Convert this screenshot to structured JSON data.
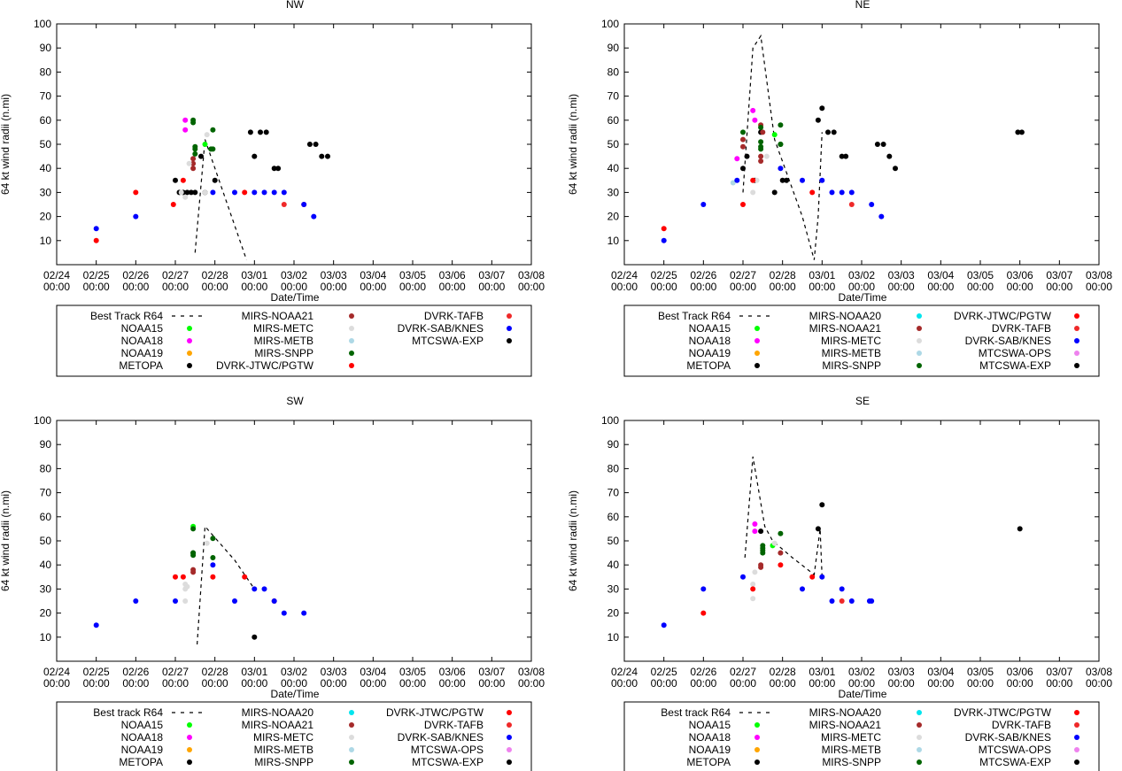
{
  "panels": [
    {
      "title": "NW",
      "xlabel": "Date/Time",
      "ylabel": "64 kt wind radii (n.mi)",
      "legend": [
        [
          "Best Track R64",
          "MIRS-NOAA21",
          "DVRK-TAFB"
        ],
        [
          "NOAA15",
          "MIRS-METC",
          "DVRK-SAB/KNES"
        ],
        [
          "NOAA18",
          "MIRS-METB",
          "MTCSWA-EXP"
        ],
        [
          "NOAA19",
          "MIRS-SNPP",
          ""
        ],
        [
          "METOPA",
          "DVRK-JTWC/PGTW",
          ""
        ]
      ]
    },
    {
      "title": "NE",
      "xlabel": "Date/Time",
      "ylabel": "64 kt wind radii (n.mi)",
      "legend": [
        [
          "Best Track R64",
          "MIRS-NOAA20",
          "DVRK-JTWC/PGTW"
        ],
        [
          "NOAA15",
          "MIRS-NOAA21",
          "DVRK-TAFB"
        ],
        [
          "NOAA18",
          "MIRS-METC",
          "DVRK-SAB/KNES"
        ],
        [
          "NOAA19",
          "MIRS-METB",
          "MTCSWA-OPS"
        ],
        [
          "METOPA",
          "MIRS-SNPP",
          "MTCSWA-EXP"
        ]
      ]
    },
    {
      "title": "SW",
      "xlabel": "Date/Time",
      "ylabel": "64 kt wind radii (n.mi)",
      "legend": [
        [
          "Best track R64",
          "MIRS-NOAA20",
          "DVRK-JTWC/PGTW"
        ],
        [
          "NOAA15",
          "MIRS-NOAA21",
          "DVRK-TAFB"
        ],
        [
          "NOAA18",
          "MIRS-METC",
          "DVRK-SAB/KNES"
        ],
        [
          "NOAA19",
          "MIRS-METB",
          "MTCSWA-OPS"
        ],
        [
          "METOPA",
          "MIRS-SNPP",
          "MTCSWA-EXP"
        ]
      ]
    },
    {
      "title": "SE",
      "xlabel": "Date/Time",
      "ylabel": "64 kt wind radii (n.mi)",
      "legend": [
        [
          "Best track R64",
          "MIRS-NOAA20",
          "DVRK-JTWC/PGTW"
        ],
        [
          "NOAA15",
          "MIRS-NOAA21",
          "DVRK-TAFB"
        ],
        [
          "NOAA18",
          "MIRS-METC",
          "DVRK-SAB/KNES"
        ],
        [
          "NOAA19",
          "MIRS-METB",
          "MTCSWA-OPS"
        ],
        [
          "METOPA",
          "MIRS-SNPP",
          "MTCSWA-EXP"
        ]
      ]
    }
  ],
  "series_colors": {
    "Best Track R64": "#000000",
    "Best track R64": "#000000",
    "NOAA15": "#00ff00",
    "NOAA18": "#ff00ff",
    "NOAA19": "#ffa500",
    "METOPA": "#000000",
    "MIRS-NOAA20": "#00e5ee",
    "MIRS-NOAA21": "#a52a2a",
    "MIRS-METC": "#dcdcdc",
    "MIRS-METB": "#add8e6",
    "MIRS-SNPP": "#006400",
    "DVRK-JTWC/PGTW": "#ff0000",
    "DVRK-TAFB": "#ef2929",
    "DVRK-SAB/KNES": "#0000ff",
    "MTCSWA-OPS": "#ee82ee",
    "MTCSWA-EXP": "#000000"
  },
  "chart_data": [
    {
      "type": "scatter",
      "title": "NW",
      "xlabel": "Date/Time",
      "ylabel": "64 kt wind radii (n.mi)",
      "x_unit": "days since 02/24 00:00",
      "xlim": [
        0,
        12
      ],
      "ylim": [
        0,
        100
      ],
      "yticks": [
        10,
        20,
        30,
        40,
        50,
        60,
        70,
        80,
        90,
        100
      ],
      "xtick_labels": [
        "02/24\n00:00",
        "02/25\n00:00",
        "02/26\n00:00",
        "02/27\n00:00",
        "02/28\n00:00",
        "03/01\n00:00",
        "03/02\n00:00",
        "03/03\n00:00",
        "03/04\n00:00",
        "03/05\n00:00",
        "03/06\n00:00",
        "03/07\n00:00",
        "03/08\n00:00"
      ],
      "best_track": {
        "name": "Best Track R64",
        "x": [
          3.5,
          3.75,
          4.8
        ],
        "y": [
          5,
          52,
          2
        ]
      },
      "series": [
        {
          "name": "NOAA15",
          "x": [
            3.75
          ],
          "y": [
            50
          ]
        },
        {
          "name": "NOAA18",
          "x": [
            3.25,
            3.25
          ],
          "y": [
            60,
            56
          ]
        },
        {
          "name": "METOPA",
          "x": [
            3.0,
            3.1,
            3.2,
            3.3,
            3.4,
            3.5,
            3.65,
            3.75,
            4.0
          ],
          "y": [
            35,
            30,
            30,
            30,
            30,
            30,
            45,
            30,
            35
          ]
        },
        {
          "name": "MIRS-NOAA21",
          "x": [
            3.45,
            3.45,
            3.45
          ],
          "y": [
            42,
            40,
            44
          ]
        },
        {
          "name": "MIRS-METC",
          "x": [
            3.15,
            3.25,
            3.35,
            3.75,
            3.8
          ],
          "y": [
            30,
            28,
            42,
            30,
            54
          ]
        },
        {
          "name": "MIRS-SNPP",
          "x": [
            3.45,
            3.45,
            3.5,
            3.5,
            3.5,
            3.9,
            3.95,
            3.95
          ],
          "y": [
            59,
            60,
            49,
            48,
            46,
            48,
            48,
            56
          ]
        },
        {
          "name": "DVRK-JTWC/PGTW",
          "x": [
            1.0,
            2.0,
            2.95,
            3.2,
            4.75
          ],
          "y": [
            10,
            30,
            25,
            35,
            30
          ]
        },
        {
          "name": "DVRK-TAFB",
          "x": [
            5.75,
            6.25
          ],
          "y": [
            25,
            25
          ]
        },
        {
          "name": "DVRK-SAB/KNES",
          "x": [
            1.0,
            2.0,
            3.95,
            4.5,
            5.0,
            5.25,
            5.5,
            5.75,
            6.25,
            6.5
          ],
          "y": [
            15,
            20,
            30,
            30,
            30,
            30,
            30,
            30,
            25,
            20
          ]
        },
        {
          "name": "MTCSWA-EXP",
          "x": [
            4.9,
            5.0,
            5.15,
            5.3,
            5.5,
            5.6,
            6.4,
            6.55,
            6.7,
            6.85
          ],
          "y": [
            55,
            45,
            55,
            55,
            40,
            40,
            50,
            50,
            45,
            45
          ]
        }
      ]
    },
    {
      "type": "scatter",
      "title": "NE",
      "xlabel": "Date/Time",
      "ylabel": "64 kt wind radii (n.mi)",
      "x_unit": "days since 02/24 00:00",
      "xlim": [
        0,
        12
      ],
      "ylim": [
        0,
        100
      ],
      "yticks": [
        10,
        20,
        30,
        40,
        50,
        60,
        70,
        80,
        90,
        100
      ],
      "xtick_labels": [
        "02/24\n00:00",
        "02/25\n00:00",
        "02/26\n00:00",
        "02/27\n00:00",
        "02/28\n00:00",
        "03/01\n00:00",
        "03/02\n00:00",
        "03/03\n00:00",
        "03/04\n00:00",
        "03/05\n00:00",
        "03/06\n00:00",
        "03/07\n00:00",
        "03/08\n00:00"
      ],
      "best_track": {
        "name": "Best Track R64",
        "x": [
          3.0,
          3.25,
          3.45,
          3.8,
          4.5,
          4.8,
          4.9,
          5.0
        ],
        "y": [
          30,
          90,
          95,
          52,
          20,
          2,
          20,
          55
        ]
      },
      "series": [
        {
          "name": "NOAA15",
          "x": [
            3.8
          ],
          "y": [
            54
          ]
        },
        {
          "name": "NOAA18",
          "x": [
            2.85,
            3.25,
            3.3
          ],
          "y": [
            44,
            64,
            60
          ]
        },
        {
          "name": "METOPA",
          "x": [
            3.0,
            3.1,
            3.3,
            3.45,
            3.8,
            4.0,
            4.1
          ],
          "y": [
            40,
            45,
            35,
            55,
            30,
            35,
            35
          ]
        },
        {
          "name": "MIRS-NOAA21",
          "x": [
            3.0,
            3.0,
            3.45,
            3.45,
            3.45,
            3.5
          ],
          "y": [
            52,
            49,
            45,
            43,
            58,
            55
          ]
        },
        {
          "name": "MIRS-METC",
          "x": [
            3.25,
            3.35,
            3.6
          ],
          "y": [
            30,
            35,
            45
          ]
        },
        {
          "name": "MIRS-METB",
          "x": [
            2.75
          ],
          "y": [
            34
          ]
        },
        {
          "name": "MIRS-SNPP",
          "x": [
            3.0,
            3.45,
            3.45,
            3.45,
            3.45,
            3.95,
            3.95,
            3.95
          ],
          "y": [
            55,
            51,
            49,
            48,
            57,
            58,
            50,
            50
          ]
        },
        {
          "name": "DVRK-JTWC/PGTW",
          "x": [
            1.0,
            3.0,
            3.25,
            4.75
          ],
          "y": [
            15,
            25,
            35,
            30
          ]
        },
        {
          "name": "DVRK-TAFB",
          "x": [
            5.75
          ],
          "y": [
            25
          ]
        },
        {
          "name": "DVRK-SAB/KNES",
          "x": [
            1.0,
            2.0,
            2.85,
            3.95,
            4.5,
            5.0,
            5.25,
            5.5,
            5.75,
            6.25,
            6.5
          ],
          "y": [
            10,
            25,
            35,
            40,
            35,
            35,
            30,
            30,
            30,
            25,
            20
          ]
        },
        {
          "name": "MTCSWA-EXP",
          "x": [
            4.9,
            5.0,
            5.15,
            5.3,
            5.5,
            5.6,
            6.4,
            6.55,
            6.7,
            6.85,
            9.95,
            10.05
          ],
          "y": [
            60,
            65,
            55,
            55,
            45,
            45,
            50,
            50,
            45,
            40,
            55,
            55
          ]
        }
      ]
    },
    {
      "type": "scatter",
      "title": "SW",
      "xlabel": "Date/Time",
      "ylabel": "64 kt wind radii (n.mi)",
      "x_unit": "days since 02/24 00:00",
      "xlim": [
        0,
        12
      ],
      "ylim": [
        0,
        100
      ],
      "yticks": [
        10,
        20,
        30,
        40,
        50,
        60,
        70,
        80,
        90,
        100
      ],
      "xtick_labels": [
        "02/24\n00:00",
        "02/25\n00:00",
        "02/26\n00:00",
        "02/27\n00:00",
        "02/28\n00:00",
        "03/01\n00:00",
        "03/02\n00:00",
        "03/03\n00:00",
        "03/04\n00:00",
        "03/05\n00:00",
        "03/06\n00:00",
        "03/07\n00:00",
        "03/08\n00:00"
      ],
      "best_track": {
        "name": "Best track R64",
        "x": [
          3.55,
          3.75,
          4.5,
          5.0
        ],
        "y": [
          7,
          56,
          42,
          30
        ]
      },
      "series": [
        {
          "name": "NOAA15",
          "x": [
            3.45
          ],
          "y": [
            56
          ]
        },
        {
          "name": "METOPA",
          "x": [
            5.0
          ],
          "y": [
            10
          ]
        },
        {
          "name": "MIRS-NOAA21",
          "x": [
            3.45,
            3.45
          ],
          "y": [
            38,
            37
          ]
        },
        {
          "name": "MIRS-METC",
          "x": [
            3.25,
            3.25,
            3.25,
            3.3,
            3.8
          ],
          "y": [
            32,
            30,
            25,
            31,
            49
          ]
        },
        {
          "name": "MIRS-SNPP",
          "x": [
            3.45,
            3.45,
            3.45,
            3.45,
            3.95,
            3.95
          ],
          "y": [
            55,
            45,
            44,
            45,
            51,
            43
          ]
        },
        {
          "name": "DVRK-JTWC/PGTW",
          "x": [
            3.0,
            3.2,
            3.95,
            4.75
          ],
          "y": [
            35,
            35,
            35,
            35
          ]
        },
        {
          "name": "DVRK-TAFB",
          "x": [
            5.5
          ],
          "y": [
            25
          ]
        },
        {
          "name": "DVRK-SAB/KNES",
          "x": [
            1.0,
            2.0,
            3.0,
            3.95,
            4.5,
            5.0,
            5.25,
            5.5,
            5.75,
            6.25
          ],
          "y": [
            15,
            25,
            25,
            40,
            25,
            30,
            30,
            25,
            20,
            20
          ]
        }
      ]
    },
    {
      "type": "scatter",
      "title": "SE",
      "xlabel": "Date/Time",
      "ylabel": "64 kt wind radii (n.mi)",
      "x_unit": "days since 02/24 00:00",
      "xlim": [
        0,
        12
      ],
      "ylim": [
        0,
        100
      ],
      "yticks": [
        10,
        20,
        30,
        40,
        50,
        60,
        70,
        80,
        90,
        100
      ],
      "xtick_labels": [
        "02/24\n00:00",
        "02/25\n00:00",
        "02/26\n00:00",
        "02/27\n00:00",
        "02/28\n00:00",
        "03/01\n00:00",
        "03/02\n00:00",
        "03/03\n00:00",
        "03/04\n00:00",
        "03/05\n00:00",
        "03/06\n00:00",
        "03/07\n00:00",
        "03/08\n00:00"
      ],
      "best_track": {
        "name": "Best track R64",
        "x": [
          3.05,
          3.25,
          3.55,
          3.75,
          4.25,
          4.8,
          4.95,
          5.0
        ],
        "y": [
          43,
          85,
          56,
          50,
          43,
          36,
          55,
          35
        ]
      },
      "series": [
        {
          "name": "NOAA15",
          "x": [
            3.75
          ],
          "y": [
            48
          ]
        },
        {
          "name": "NOAA18",
          "x": [
            3.3,
            3.3
          ],
          "y": [
            57,
            54
          ]
        },
        {
          "name": "METOPA",
          "x": [
            3.45,
            4.9,
            5.0
          ],
          "y": [
            54,
            55,
            65
          ]
        },
        {
          "name": "MIRS-NOAA21",
          "x": [
            3.45,
            3.45,
            3.95
          ],
          "y": [
            40,
            39,
            45
          ]
        },
        {
          "name": "MIRS-METC",
          "x": [
            3.25,
            3.25,
            3.3,
            3.8
          ],
          "y": [
            26,
            32,
            37,
            49
          ]
        },
        {
          "name": "MIRS-SNPP",
          "x": [
            3.5,
            3.5,
            3.5,
            3.5,
            3.95
          ],
          "y": [
            45,
            46,
            48,
            47,
            53
          ]
        },
        {
          "name": "DVRK-JTWC/PGTW",
          "x": [
            2.0,
            3.25,
            3.95,
            4.75
          ],
          "y": [
            20,
            30,
            40,
            35
          ]
        },
        {
          "name": "DVRK-TAFB",
          "x": [
            5.5
          ],
          "y": [
            25
          ]
        },
        {
          "name": "DVRK-SAB/KNES",
          "x": [
            1.0,
            2.0,
            3.0,
            4.5,
            5.0,
            5.25,
            5.5,
            5.75,
            6.2,
            6.25
          ],
          "y": [
            15,
            30,
            35,
            30,
            35,
            25,
            30,
            25,
            25,
            25
          ]
        },
        {
          "name": "MTCSWA-EXP",
          "x": [
            10.0
          ],
          "y": [
            55
          ]
        }
      ]
    }
  ]
}
